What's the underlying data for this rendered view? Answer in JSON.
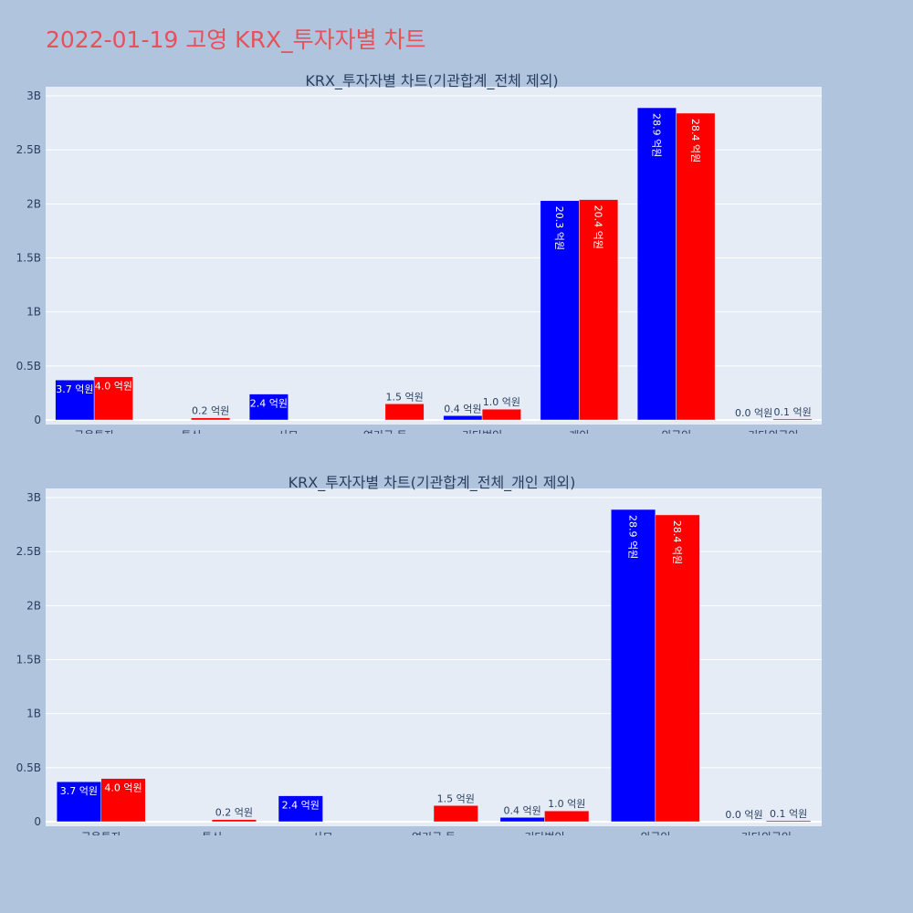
{
  "page_title": "2022-01-19 고영 KRX_투자자별 차트",
  "colors": {
    "background": "#b0c4de",
    "plot_bg": "#e5ecf6",
    "series_1": "#0000ff",
    "series_2": "#ff0000",
    "title": "#e8505b"
  },
  "chart_data": [
    {
      "type": "bar",
      "title": "KRX_투자자별 차트(기관합계_전체 제외)",
      "categories": [
        "금융투자",
        "투신",
        "사모",
        "연기금 등",
        "기타법인",
        "개인",
        "외국인",
        "기타외국인"
      ],
      "ylim": [
        0,
        3000000000
      ],
      "yticks": [
        0,
        500000000,
        1000000000,
        1500000000,
        2000000000,
        2500000000,
        3000000000
      ],
      "yticklabels": [
        "0",
        "0.5B",
        "1B",
        "1.5B",
        "2B",
        "2.5B",
        "3B"
      ],
      "grid": true,
      "series": [
        {
          "color": "#0000ff",
          "values": [
            370000000,
            0,
            240000000,
            0,
            40000000,
            2030000000,
            2890000000,
            0
          ],
          "labels": [
            "3.7 억원",
            "",
            "2.4 억원",
            "",
            "0.4 억원",
            "20.3 억원",
            "28.9 억원",
            "0.0 억원"
          ]
        },
        {
          "color": "#ff0000",
          "values": [
            400000000,
            20000000,
            0,
            150000000,
            100000000,
            2040000000,
            2840000000,
            10000000
          ],
          "labels": [
            "4.0 억원",
            "0.2 억원",
            "",
            "1.5 억원",
            "1.0 억원",
            "20.4 억원",
            "28.4 억원",
            "0.1 억원"
          ]
        }
      ]
    },
    {
      "type": "bar",
      "title": "KRX_투자자별 차트(기관합계_전체_개인 제외)",
      "categories": [
        "금융투자",
        "투신",
        "사모",
        "연기금 등",
        "기타법인",
        "외국인",
        "기타외국인"
      ],
      "ylim": [
        0,
        3000000000
      ],
      "yticks": [
        0,
        500000000,
        1000000000,
        1500000000,
        2000000000,
        2500000000,
        3000000000
      ],
      "yticklabels": [
        "0",
        "0.5B",
        "1B",
        "1.5B",
        "2B",
        "2.5B",
        "3B"
      ],
      "grid": true,
      "series": [
        {
          "color": "#0000ff",
          "values": [
            370000000,
            0,
            240000000,
            0,
            40000000,
            2890000000,
            0
          ],
          "labels": [
            "3.7 억원",
            "",
            "2.4 억원",
            "",
            "0.4 억원",
            "28.9 억원",
            "0.0 억원"
          ]
        },
        {
          "color": "#ff0000",
          "values": [
            400000000,
            20000000,
            0,
            150000000,
            100000000,
            2840000000,
            10000000
          ],
          "labels": [
            "4.0 억원",
            "0.2 억원",
            "",
            "1.5 억원",
            "1.0 억원",
            "28.4 억원",
            "0.1 억원"
          ]
        }
      ]
    }
  ]
}
